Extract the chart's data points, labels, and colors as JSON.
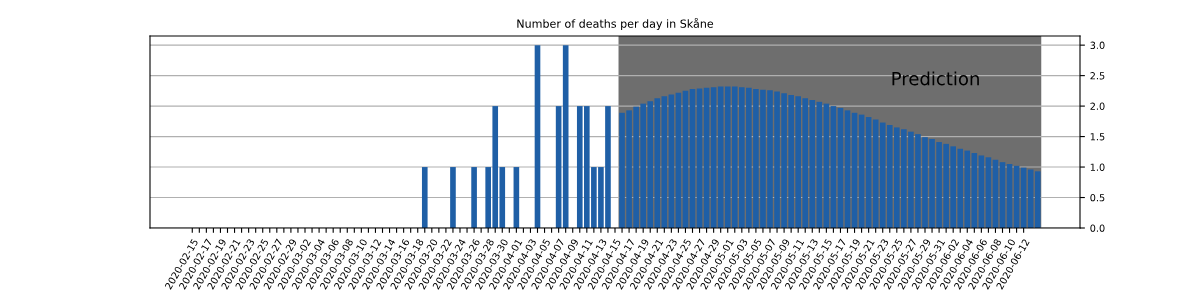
{
  "chart_data": {
    "type": "bar",
    "title": "Number of deaths per day in Skåne",
    "series": [
      {
        "color": "#1f5fa6",
        "x": [
          "2020-03-19",
          "2020-03-23",
          "2020-03-26",
          "2020-03-28",
          "2020-03-29",
          "2020-03-30",
          "2020-04-01",
          "2020-04-04",
          "2020-04-07",
          "2020-04-08",
          "2020-04-10",
          "2020-04-11",
          "2020-04-12",
          "2020-04-13",
          "2020-04-14"
        ],
        "values": [
          1,
          1,
          1,
          1,
          2,
          1,
          1,
          3,
          2,
          3,
          2,
          2,
          1,
          1,
          2
        ]
      },
      {
        "color": "#1f5fa6",
        "x": [
          "2020-04-16",
          "2020-04-17",
          "2020-04-18",
          "2020-04-19",
          "2020-04-20",
          "2020-04-21",
          "2020-04-22",
          "2020-04-23",
          "2020-04-24",
          "2020-04-25",
          "2020-04-26",
          "2020-04-27",
          "2020-04-28",
          "2020-04-29",
          "2020-04-30",
          "2020-05-01",
          "2020-05-02",
          "2020-05-03",
          "2020-05-04",
          "2020-05-05",
          "2020-05-06",
          "2020-05-07",
          "2020-05-08",
          "2020-05-09",
          "2020-05-10",
          "2020-05-11",
          "2020-05-12",
          "2020-05-13",
          "2020-05-14",
          "2020-05-15",
          "2020-05-16",
          "2020-05-17",
          "2020-05-18",
          "2020-05-19",
          "2020-05-20",
          "2020-05-21",
          "2020-05-22",
          "2020-05-23",
          "2020-05-24",
          "2020-05-25",
          "2020-05-26",
          "2020-05-27",
          "2020-05-28",
          "2020-05-29",
          "2020-05-30",
          "2020-05-31",
          "2020-06-01",
          "2020-06-02",
          "2020-06-03",
          "2020-06-04",
          "2020-06-05",
          "2020-06-06",
          "2020-06-07",
          "2020-06-08",
          "2020-06-09",
          "2020-06-10",
          "2020-06-11",
          "2020-06-12",
          "2020-06-13",
          "2020-06-14"
        ],
        "values": [
          1.89,
          1.93,
          1.99,
          2.04,
          2.08,
          2.13,
          2.16,
          2.19,
          2.22,
          2.25,
          2.28,
          2.29,
          2.3,
          2.31,
          2.32,
          2.32,
          2.32,
          2.31,
          2.3,
          2.28,
          2.27,
          2.26,
          2.24,
          2.21,
          2.18,
          2.16,
          2.13,
          2.1,
          2.07,
          2.04,
          2.0,
          1.97,
          1.93,
          1.89,
          1.86,
          1.82,
          1.78,
          1.73,
          1.69,
          1.65,
          1.62,
          1.58,
          1.54,
          1.49,
          1.46,
          1.41,
          1.38,
          1.34,
          1.3,
          1.27,
          1.23,
          1.19,
          1.16,
          1.12,
          1.08,
          1.05,
          1.02,
          0.99,
          0.96,
          0.93
        ]
      }
    ],
    "bands": [
      {
        "axis": "x",
        "from": "2020-04-15T12:00",
        "to": "2020-06-14T12:00",
        "label": "Prediction",
        "color": "#6e6e6e"
      }
    ],
    "xlim": [
      "2020-02-09",
      "2020-06-20"
    ],
    "xticks": [
      "2020-02-15",
      {
        "value": "2020-02-16",
        "label": null
      },
      "2020-02-17",
      {
        "value": "2020-02-18",
        "label": null
      },
      "2020-02-19",
      {
        "value": "2020-02-20",
        "label": null
      },
      "2020-02-21",
      {
        "value": "2020-02-22",
        "label": null
      },
      "2020-02-23",
      {
        "value": "2020-02-24",
        "label": null
      },
      "2020-02-25",
      {
        "value": "2020-02-26",
        "label": null
      },
      "2020-02-27",
      {
        "value": "2020-02-28",
        "label": null
      },
      "2020-02-29",
      {
        "value": "2020-03-01",
        "label": null
      },
      "2020-03-02",
      {
        "value": "2020-03-03",
        "label": null
      },
      "2020-03-04",
      {
        "value": "2020-03-05",
        "label": null
      },
      "2020-03-06",
      {
        "value": "2020-03-07",
        "label": null
      },
      "2020-03-08",
      {
        "value": "2020-03-09",
        "label": null
      },
      "2020-03-10",
      {
        "value": "2020-03-11",
        "label": null
      },
      "2020-03-12",
      {
        "value": "2020-03-13",
        "label": null
      },
      "2020-03-14",
      {
        "value": "2020-03-15",
        "label": null
      },
      "2020-03-16",
      {
        "value": "2020-03-17",
        "label": null
      },
      "2020-03-18",
      {
        "value": "2020-03-19",
        "label": null
      },
      "2020-03-20",
      {
        "value": "2020-03-21",
        "label": null
      },
      "2020-03-22",
      {
        "value": "2020-03-23",
        "label": null
      },
      "2020-03-24",
      {
        "value": "2020-03-25",
        "label": null
      },
      "2020-03-26",
      {
        "value": "2020-03-27",
        "label": null
      },
      "2020-03-28",
      {
        "value": "2020-03-29",
        "label": null
      },
      "2020-03-30",
      {
        "value": "2020-03-31",
        "label": null
      },
      "2020-04-01",
      {
        "value": "2020-04-02",
        "label": null
      },
      "2020-04-03",
      {
        "value": "2020-04-04",
        "label": null
      },
      "2020-04-05",
      {
        "value": "2020-04-06",
        "label": null
      },
      "2020-04-07",
      {
        "value": "2020-04-08",
        "label": null
      },
      "2020-04-09",
      {
        "value": "2020-04-10",
        "label": null
      },
      "2020-04-11",
      {
        "value": "2020-04-12",
        "label": null
      },
      "2020-04-13",
      {
        "value": "2020-04-14",
        "label": null
      },
      "2020-04-15",
      {
        "value": "2020-04-16",
        "label": null
      },
      "2020-04-17",
      {
        "value": "2020-04-18",
        "label": null
      },
      "2020-04-19",
      {
        "value": "2020-04-20",
        "label": null
      },
      "2020-04-21",
      {
        "value": "2020-04-22",
        "label": null
      },
      "2020-04-23",
      {
        "value": "2020-04-24",
        "label": null
      },
      "2020-04-25",
      {
        "value": "2020-04-26",
        "label": null
      },
      "2020-04-27",
      {
        "value": "2020-04-28",
        "label": null
      },
      "2020-04-29",
      {
        "value": "2020-04-30",
        "label": null
      },
      "2020-05-01",
      {
        "value": "2020-05-02",
        "label": null
      },
      "2020-05-03",
      {
        "value": "2020-05-04",
        "label": null
      },
      "2020-05-05",
      {
        "value": "2020-05-06",
        "label": null
      },
      "2020-05-07",
      {
        "value": "2020-05-08",
        "label": null
      },
      "2020-05-09",
      {
        "value": "2020-05-10",
        "label": null
      },
      "2020-05-11",
      {
        "value": "2020-05-12",
        "label": null
      },
      "2020-05-13",
      {
        "value": "2020-05-14",
        "label": null
      },
      "2020-05-15",
      {
        "value": "2020-05-16",
        "label": null
      },
      "2020-05-17",
      {
        "value": "2020-05-18",
        "label": null
      },
      "2020-05-19",
      {
        "value": "2020-05-20",
        "label": null
      },
      "2020-05-21",
      {
        "value": "2020-05-22",
        "label": null
      },
      "2020-05-23",
      {
        "value": "2020-05-24",
        "label": null
      },
      "2020-05-25",
      {
        "value": "2020-05-26",
        "label": null
      },
      "2020-05-27",
      {
        "value": "2020-05-28",
        "label": null
      },
      "2020-05-29",
      {
        "value": "2020-05-30",
        "label": null
      },
      "2020-05-31",
      {
        "value": "2020-06-01",
        "label": null
      },
      "2020-06-02",
      {
        "value": "2020-06-03",
        "label": null
      },
      "2020-06-04",
      {
        "value": "2020-06-05",
        "label": null
      },
      "2020-06-06",
      {
        "value": "2020-06-07",
        "label": null
      },
      "2020-06-08",
      {
        "value": "2020-06-09",
        "label": null
      },
      "2020-06-10",
      {
        "value": "2020-06-11",
        "label": null
      },
      "2020-06-12"
    ],
    "ylim": [
      0,
      3.15
    ],
    "yticks": [
      {
        "value": 0,
        "label": "0.0"
      },
      {
        "value": 0.5,
        "label": "0.5"
      },
      {
        "value": 1,
        "label": "1.0"
      },
      {
        "value": 1.5,
        "label": "1.5"
      },
      {
        "value": 2,
        "label": "2.0"
      },
      {
        "value": 2.5,
        "label": "2.5"
      },
      {
        "value": 3,
        "label": "3.0"
      }
    ],
    "grid": "y"
  }
}
